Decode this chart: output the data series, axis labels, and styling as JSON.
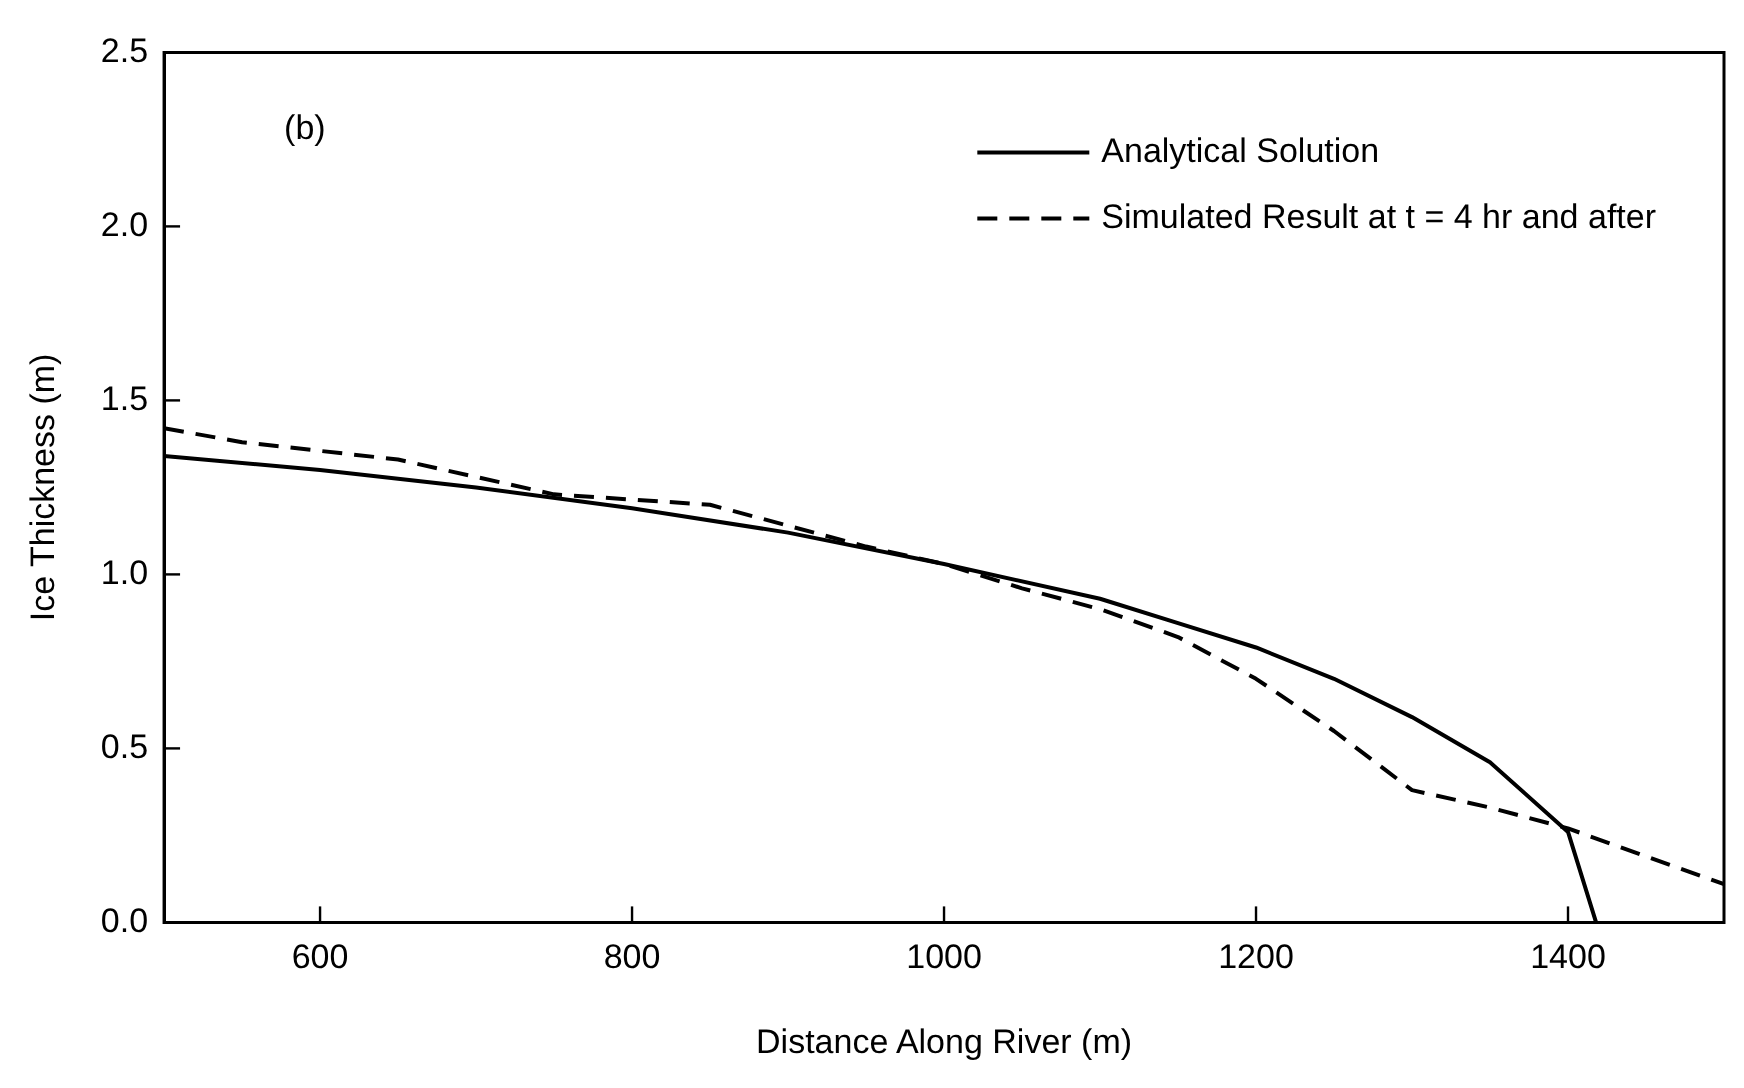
{
  "chart_data": {
    "type": "line",
    "xlabel": "Distance Along River (m)",
    "ylabel": "Ice Thickness (m)",
    "annotations": [
      "(b)"
    ],
    "xlim": [
      500,
      1500
    ],
    "xticks": [
      600,
      800,
      1000,
      1200,
      1400
    ],
    "ylim": [
      0,
      2.5
    ],
    "yticks": [
      {
        "value": 0,
        "label": "0.0"
      },
      {
        "value": 0.5,
        "label": "0.5"
      },
      {
        "value": 1,
        "label": "1.0"
      },
      {
        "value": 1.5,
        "label": "1.5"
      },
      {
        "value": 2,
        "label": "2.0"
      },
      {
        "value": 2.5,
        "label": "2.5"
      }
    ],
    "grid": false,
    "legend": "top right",
    "marker": "none",
    "series": [
      {
        "name": "Analytical Solution",
        "color": "#000000",
        "line_style": "solid",
        "x": [
          500,
          600,
          700,
          800,
          900,
          1000,
          1100,
          1150,
          1200,
          1250,
          1300,
          1350,
          1400,
          1418
        ],
        "values": [
          1.34,
          1.3,
          1.25,
          1.19,
          1.12,
          1.03,
          0.93,
          0.86,
          0.79,
          0.7,
          0.59,
          0.46,
          0.26,
          0
        ]
      },
      {
        "name": "Simulated Result at t = 4 hr and after",
        "color": "#000000",
        "line_style": "dashed",
        "x": [
          500,
          550,
          650,
          700,
          750,
          850,
          900,
          950,
          1000,
          1050,
          1100,
          1150,
          1200,
          1250,
          1300,
          1350,
          1400,
          1450,
          1500
        ],
        "values": [
          1.42,
          1.38,
          1.33,
          1.28,
          1.23,
          1.2,
          1.14,
          1.08,
          1.03,
          0.96,
          0.9,
          0.82,
          0.7,
          0.55,
          0.38,
          0.33,
          0.27,
          0.19,
          0.11
        ]
      }
    ]
  }
}
